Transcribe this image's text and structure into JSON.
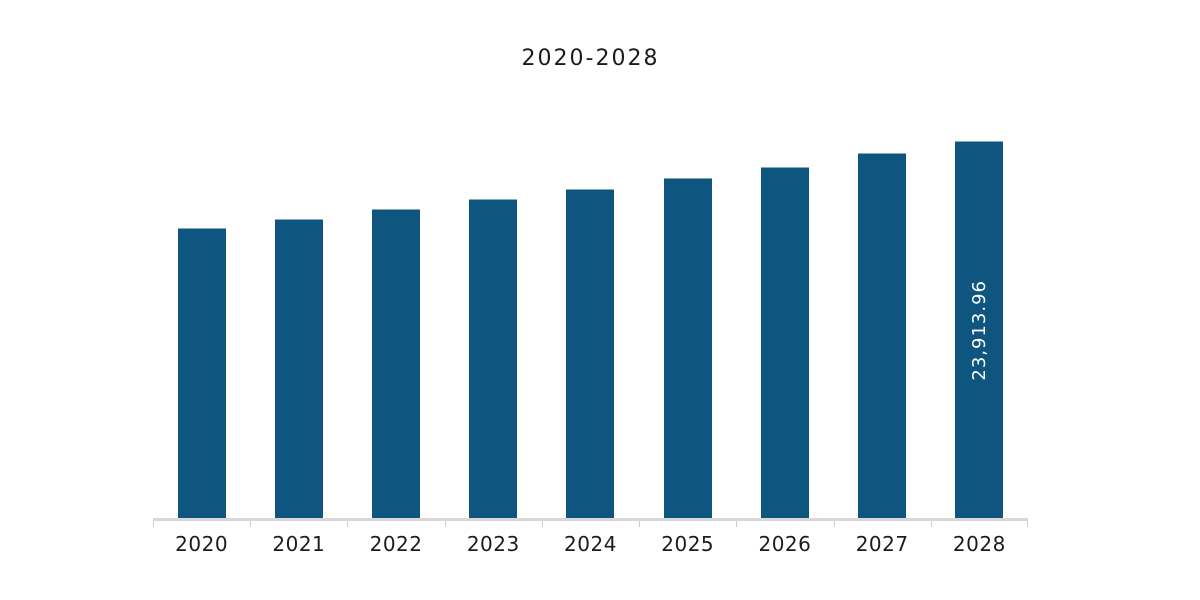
{
  "title": "2020-2028",
  "chart_data": {
    "type": "bar",
    "title": "2020-2028",
    "categories": [
      "2020",
      "2021",
      "2022",
      "2023",
      "2024",
      "2025",
      "2026",
      "2027",
      "2028"
    ],
    "values": [
      18380,
      18953,
      19589,
      20225,
      20861,
      21561,
      22260,
      23151,
      23913.96
    ],
    "labeled_values": {
      "2028": "23,913.96"
    },
    "xlabel": "",
    "ylabel": "",
    "ylim": [
      0,
      23913.96
    ],
    "grid": false,
    "legend": false,
    "y_axis_visible": false,
    "bar_color": "#0e567f",
    "bar_label_color": "#ffffff",
    "axis_line_color": "#d8d8d8",
    "text_color": "#1c1c1c",
    "background_color": "#ffffff"
  }
}
